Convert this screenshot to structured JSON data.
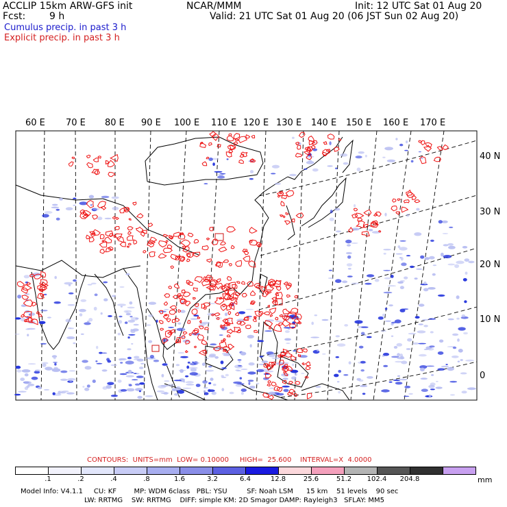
{
  "header": {
    "model": "ACCLIP 15km ARW-GFS init",
    "fcst_label": "Fcst:",
    "fcst_value": "9 h",
    "center": "NCAR/MMM",
    "init": "Init: 12 UTC Sat 01 Aug 20",
    "valid": "Valid: 21 UTC Sat 01 Aug 20 (06 JST Sun 02 Aug 20)",
    "cumulus": "Cumulus precip. in past 3 h",
    "explicit": "Explicit precip. in past 3 h"
  },
  "map": {
    "lon_labels": [
      "60 E",
      "70 E",
      "80 E",
      "90 E",
      "100 E",
      "110 E",
      "120 E",
      "130 E",
      "140 E",
      "150 E",
      "160 E",
      "170 E"
    ],
    "lat_labels": [
      "40 N",
      "30 N",
      "20 N",
      "10 N",
      "0"
    ],
    "colors": {
      "cumulus": "#2233dd",
      "explicit": "#ee1111",
      "coast": "#000000"
    }
  },
  "legend": {
    "contours": "CONTOURS:  UNITS=mm  LOW= 0.10000     HIGH=  25.600    INTERVAL=X  4.0000",
    "ticks": [
      ".1",
      ".2",
      ".4",
      ".8",
      "1.6",
      "3.2",
      "6.4",
      "12.8",
      "25.6",
      "51.2",
      "102.4",
      "204.8"
    ],
    "unit": "mm",
    "colors": [
      "#ffffff",
      "#f2f2fc",
      "#e2e6fb",
      "#c8ccf6",
      "#a8aef0",
      "#8a8ee8",
      "#5c60e2",
      "#1a1ae0",
      "#fcd8dc",
      "#f4a0bc",
      "#b4b4b4",
      "#555555",
      "#303030",
      "#c8a0f0"
    ]
  },
  "footer": {
    "line1": "Model Info: V4.1.1     CU: KF        MP: WDM 6class   PBL: YSU         SF: Noah LSM      15 km    51 levels    90 sec",
    "line2": "LW: RRTMG    SW: RRTMG    DIFF: simple KM: 2D Smagor DAMP: Rayleigh3   SFLAY: MM5"
  }
}
